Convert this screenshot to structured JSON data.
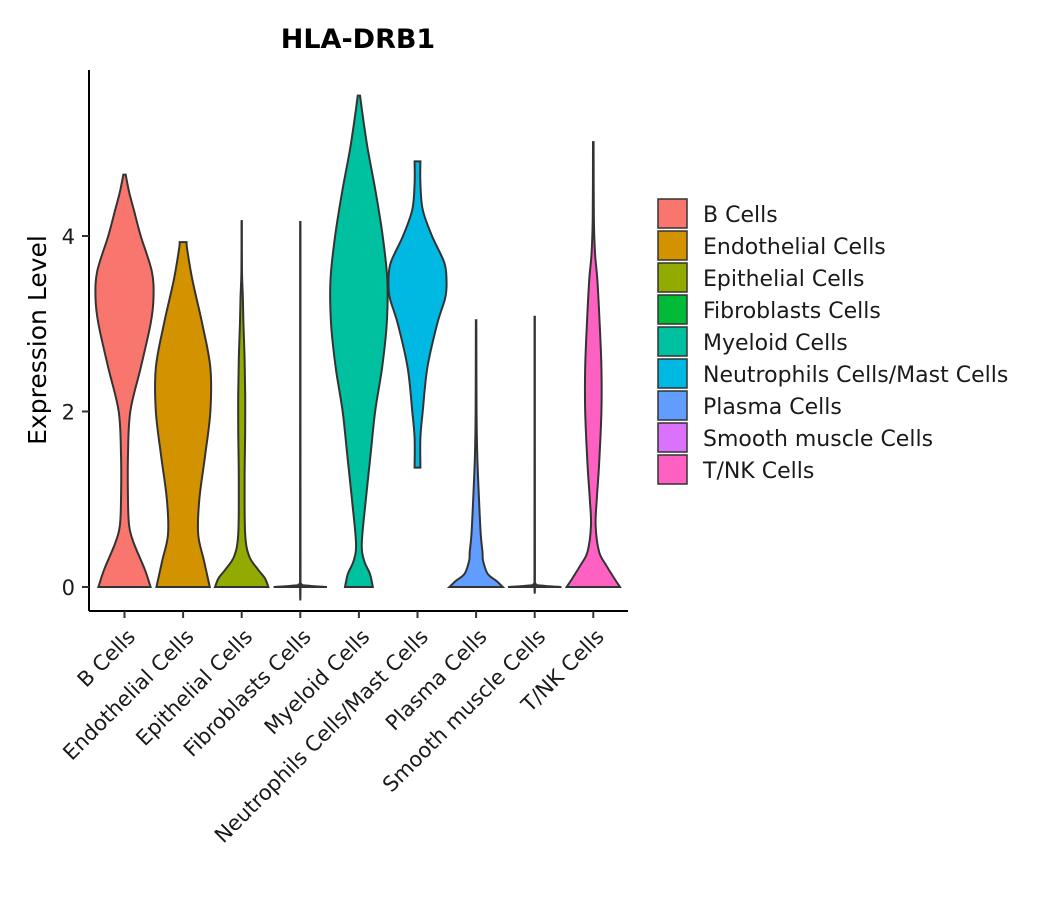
{
  "chart_data": {
    "type": "violin",
    "title": "HLA-DRB1",
    "xlabel": "",
    "ylabel": "Expression Level",
    "ylim": [
      -0.3,
      5.85
    ],
    "y_ticks": [
      0,
      2,
      4
    ],
    "categories": [
      "B Cells",
      "Endothelial Cells",
      "Epithelial Cells",
      "Fibroblasts Cells",
      "Myeloid Cells",
      "Neutrophils Cells/Mast Cells",
      "Plasma Cells",
      "Smooth muscle Cells",
      "T/NK Cells"
    ],
    "colors": [
      "#F8766D",
      "#D39200",
      "#93AA00",
      "#00BA38",
      "#00C19F",
      "#00B9E3",
      "#619CFF",
      "#DB72FB",
      "#FF61C3"
    ],
    "legend_position": "right",
    "violins": [
      {
        "name": "B Cells",
        "min": 0,
        "max": 4.7,
        "profile": [
          [
            0,
            0.45
          ],
          [
            0.2,
            0.35
          ],
          [
            0.5,
            0.16
          ],
          [
            0.7,
            0.08
          ],
          [
            1.0,
            0.06
          ],
          [
            1.5,
            0.06
          ],
          [
            2.0,
            0.1
          ],
          [
            2.5,
            0.28
          ],
          [
            3.0,
            0.45
          ],
          [
            3.3,
            0.5
          ],
          [
            3.6,
            0.47
          ],
          [
            4.0,
            0.28
          ],
          [
            4.3,
            0.16
          ],
          [
            4.5,
            0.08
          ],
          [
            4.7,
            0.02
          ]
        ]
      },
      {
        "name": "Endothelial Cells",
        "min": 0,
        "max": 3.93,
        "profile": [
          [
            0,
            0.46
          ],
          [
            0.3,
            0.36
          ],
          [
            0.6,
            0.26
          ],
          [
            1.0,
            0.28
          ],
          [
            1.5,
            0.38
          ],
          [
            2.0,
            0.47
          ],
          [
            2.5,
            0.47
          ],
          [
            3.0,
            0.33
          ],
          [
            3.5,
            0.16
          ],
          [
            3.85,
            0.07
          ],
          [
            3.93,
            0.06
          ]
        ]
      },
      {
        "name": "Epithelial Cells",
        "min": 0,
        "max": 4.17,
        "profile": [
          [
            0,
            0.46
          ],
          [
            0.1,
            0.4
          ],
          [
            0.2,
            0.28
          ],
          [
            0.35,
            0.13
          ],
          [
            0.6,
            0.06
          ],
          [
            1.2,
            0.05
          ],
          [
            1.8,
            0.06
          ],
          [
            2.2,
            0.06
          ],
          [
            2.6,
            0.05
          ],
          [
            3.0,
            0.03
          ],
          [
            3.3,
            0.02
          ],
          [
            3.6,
            0.005
          ],
          [
            4.17,
            0.003
          ]
        ]
      },
      {
        "name": "Fibroblasts Cells",
        "min": 0,
        "max": 4.16,
        "profile": [
          [
            0,
            0.46
          ],
          [
            0.015,
            0.15
          ],
          [
            0.04,
            0.01
          ],
          [
            0.2,
            0.004
          ],
          [
            4.16,
            0.003
          ]
        ]
      },
      {
        "name": "Myeloid Cells",
        "min": 0,
        "max": 5.6,
        "profile": [
          [
            0,
            0.24
          ],
          [
            0.15,
            0.19
          ],
          [
            0.3,
            0.09
          ],
          [
            0.5,
            0.05
          ],
          [
            1.0,
            0.12
          ],
          [
            1.5,
            0.2
          ],
          [
            2.0,
            0.28
          ],
          [
            2.5,
            0.4
          ],
          [
            3.0,
            0.48
          ],
          [
            3.5,
            0.49
          ],
          [
            4.0,
            0.41
          ],
          [
            4.5,
            0.29
          ],
          [
            5.0,
            0.15
          ],
          [
            5.4,
            0.06
          ],
          [
            5.6,
            0.02
          ]
        ]
      },
      {
        "name": "Neutrophils Cells/Mast Cells",
        "min": 1.36,
        "max": 4.85,
        "profile": [
          [
            1.36,
            0.05
          ],
          [
            1.7,
            0.05
          ],
          [
            2.0,
            0.09
          ],
          [
            2.5,
            0.17
          ],
          [
            3.0,
            0.34
          ],
          [
            3.3,
            0.48
          ],
          [
            3.5,
            0.5
          ],
          [
            3.7,
            0.46
          ],
          [
            4.0,
            0.25
          ],
          [
            4.3,
            0.09
          ],
          [
            4.6,
            0.05
          ],
          [
            4.85,
            0.05
          ]
        ]
      },
      {
        "name": "Plasma Cells",
        "min": 0,
        "max": 3.04,
        "profile": [
          [
            0,
            0.46
          ],
          [
            0.07,
            0.35
          ],
          [
            0.15,
            0.2
          ],
          [
            0.3,
            0.12
          ],
          [
            0.4,
            0.11
          ],
          [
            0.6,
            0.08
          ],
          [
            1.0,
            0.05
          ],
          [
            1.5,
            0.02
          ],
          [
            2.0,
            0.008
          ],
          [
            3.04,
            0.004
          ]
        ]
      },
      {
        "name": "Smooth muscle Cells",
        "min": 0,
        "max": 3.08,
        "profile": [
          [
            0,
            0.46
          ],
          [
            0.015,
            0.15
          ],
          [
            0.04,
            0.01
          ],
          [
            0.2,
            0.004
          ],
          [
            3.08,
            0.003
          ]
        ]
      },
      {
        "name": "T/NK Cells",
        "min": 0,
        "max": 5.07,
        "profile": [
          [
            0,
            0.46
          ],
          [
            0.1,
            0.36
          ],
          [
            0.25,
            0.22
          ],
          [
            0.4,
            0.1
          ],
          [
            0.7,
            0.04
          ],
          [
            1.0,
            0.06
          ],
          [
            1.4,
            0.1
          ],
          [
            2.0,
            0.14
          ],
          [
            2.5,
            0.14
          ],
          [
            3.0,
            0.11
          ],
          [
            3.5,
            0.07
          ],
          [
            3.8,
            0.03
          ],
          [
            4.2,
            0.01
          ],
          [
            5.07,
            0.005
          ]
        ]
      }
    ]
  }
}
